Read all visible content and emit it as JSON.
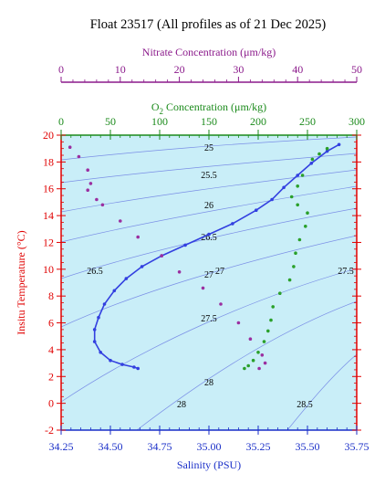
{
  "chart_data": {
    "type": "scatter",
    "title": "Float 23517  (All profiles as of 21 Dec 2025)",
    "top_axis_1": {
      "label": "Nitrate Concentration (μm/kg)",
      "range": [
        0,
        50
      ],
      "ticks": [
        "0",
        "10",
        "20",
        "30",
        "40",
        "50"
      ],
      "color": "#8b1a8b"
    },
    "top_axis_2": {
      "label_prefix": "O",
      "label_sub": "2",
      "label_suffix": " Concentration (μm/kg)",
      "range": [
        0,
        300
      ],
      "ticks": [
        "0",
        "50",
        "100",
        "150",
        "200",
        "250",
        "300"
      ],
      "color": "#1a8a1a"
    },
    "y_axis": {
      "label": "Insitu Temperature (°C)",
      "range": [
        -2,
        20
      ],
      "ticks": [
        "-2",
        "0",
        "2",
        "4",
        "6",
        "8",
        "10",
        "12",
        "14",
        "16",
        "18",
        "20"
      ],
      "color": "#e00000"
    },
    "x_axis": {
      "label": "Salinity (PSU)",
      "range": [
        34.25,
        35.75
      ],
      "ticks": [
        "34.25",
        "34.50",
        "34.75",
        "35.00",
        "35.25",
        "35.50",
        "35.75"
      ],
      "color": "#1a2fc8"
    },
    "density_labels": [
      "25",
      "25.5",
      "26",
      "26.5",
      "26.5",
      "27",
      "27",
      "27.5",
      "27.5",
      "28",
      "28",
      "28.5"
    ],
    "colors": {
      "background": "#c9eef8",
      "salinity_series": "#3340e0",
      "oxygen_series": "#2aa02a",
      "nitrate_series": "#9b2fa0",
      "density_lines": "#7b8fe6"
    },
    "series": [
      {
        "key": "salinity",
        "x_axis": "salinity",
        "points": [
          [
            35.66,
            19.3
          ],
          [
            35.6,
            18.8
          ],
          [
            35.52,
            17.9
          ],
          [
            35.45,
            17.0
          ],
          [
            35.38,
            16.1
          ],
          [
            35.32,
            15.2
          ],
          [
            35.24,
            14.4
          ],
          [
            35.12,
            13.4
          ],
          [
            35.0,
            12.6
          ],
          [
            34.88,
            11.8
          ],
          [
            34.76,
            11.0
          ],
          [
            34.66,
            10.2
          ],
          [
            34.58,
            9.3
          ],
          [
            34.52,
            8.4
          ],
          [
            34.47,
            7.4
          ],
          [
            34.44,
            6.4
          ],
          [
            34.42,
            5.5
          ],
          [
            34.42,
            4.6
          ],
          [
            34.45,
            3.8
          ],
          [
            34.5,
            3.2
          ],
          [
            34.56,
            2.9
          ],
          [
            34.62,
            2.7
          ],
          [
            34.64,
            2.6
          ]
        ]
      },
      {
        "key": "oxygen",
        "x_axis": "oxygen",
        "points": [
          [
            270,
            19.0
          ],
          [
            262,
            18.6
          ],
          [
            255,
            18.2
          ],
          [
            245,
            17.0
          ],
          [
            240,
            16.2
          ],
          [
            234,
            15.4
          ],
          [
            240,
            14.8
          ],
          [
            250,
            14.2
          ],
          [
            248,
            13.2
          ],
          [
            242,
            12.2
          ],
          [
            238,
            11.2
          ],
          [
            236,
            10.2
          ],
          [
            232,
            9.2
          ],
          [
            222,
            8.2
          ],
          [
            215,
            7.2
          ],
          [
            213,
            6.2
          ],
          [
            210,
            5.4
          ],
          [
            206,
            4.6
          ],
          [
            200,
            3.8
          ],
          [
            195,
            3.2
          ],
          [
            190,
            2.8
          ],
          [
            186,
            2.6
          ]
        ]
      },
      {
        "key": "nitrate",
        "x_axis": "nitrate",
        "points": [
          [
            1.5,
            19.1
          ],
          [
            3,
            18.4
          ],
          [
            4.5,
            17.4
          ],
          [
            5,
            16.4
          ],
          [
            4.5,
            15.9
          ],
          [
            6,
            15.2
          ],
          [
            7,
            14.8
          ],
          [
            10,
            13.6
          ],
          [
            13,
            12.4
          ],
          [
            17,
            11.0
          ],
          [
            20,
            9.8
          ],
          [
            24,
            8.6
          ],
          [
            27,
            7.4
          ],
          [
            30,
            6.0
          ],
          [
            32,
            4.8
          ],
          [
            34,
            3.6
          ],
          [
            34.5,
            3.0
          ],
          [
            33.5,
            2.6
          ]
        ]
      }
    ]
  }
}
